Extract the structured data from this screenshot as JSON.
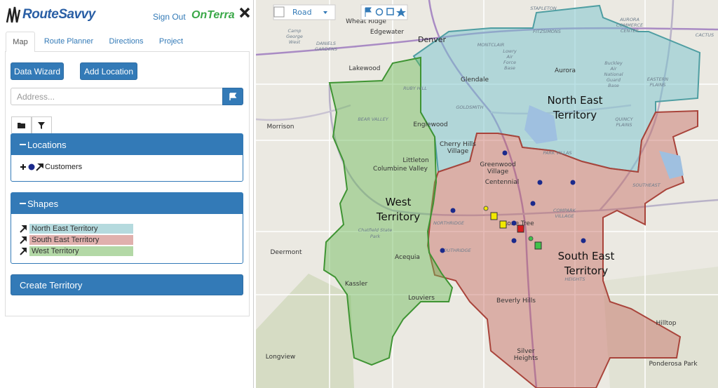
{
  "header": {
    "logo": "RouteSavvy",
    "sign_out": "Sign Out",
    "brand": "OnTerra"
  },
  "tabs": [
    "Map",
    "Route Planner",
    "Directions",
    "Project"
  ],
  "buttons": {
    "data_wizard": "Data Wizard",
    "add_location": "Add Location",
    "create_territory": "Create Territory"
  },
  "address_placeholder": "Address...",
  "locations_panel": {
    "title": "Locations",
    "items": [
      "Customers"
    ]
  },
  "shapes_panel": {
    "title": "Shapes",
    "items": [
      "North East Territory",
      "South East Territory",
      "West Territory"
    ]
  },
  "map": {
    "layer": "Road",
    "territories": [
      {
        "lines": [
          "North East",
          "Territory"
        ]
      },
      {
        "lines": [
          "South East",
          "Territory"
        ]
      },
      {
        "lines": [
          "West",
          "Territory"
        ]
      }
    ],
    "places": [
      {
        "lines": [
          "Wheat Ridge"
        ]
      },
      {
        "lines": [
          "Edgewater"
        ]
      },
      {
        "lines": [
          "Denver"
        ]
      },
      {
        "lines": [
          "Lakewood"
        ]
      },
      {
        "lines": [
          "Glendale"
        ]
      },
      {
        "lines": [
          "Aurora"
        ]
      },
      {
        "lines": [
          "Englewood"
        ]
      },
      {
        "lines": [
          "Morrison"
        ]
      },
      {
        "lines": [
          "Cherry Hills",
          "Village"
        ]
      },
      {
        "lines": [
          "Greenwood",
          "Village"
        ]
      },
      {
        "lines": [
          "Centennial"
        ]
      },
      {
        "lines": [
          "Littleton"
        ]
      },
      {
        "lines": [
          "Columbine Valley"
        ]
      },
      {
        "lines": [
          "Deermont"
        ]
      },
      {
        "lines": [
          "Acequia"
        ]
      },
      {
        "lines": [
          "Kassler"
        ]
      },
      {
        "lines": [
          "Louviers"
        ]
      },
      {
        "lines": [
          "Beverly Hills"
        ]
      },
      {
        "lines": [
          "Silver",
          "Heights"
        ]
      },
      {
        "lines": [
          "Longview"
        ]
      },
      {
        "lines": [
          "Hilltop"
        ]
      },
      {
        "lines": [
          "Ponderosa Park"
        ]
      },
      {
        "lines": [
          "Lone Tree"
        ]
      },
      {
        "lines": [
          "STAPLETON"
        ]
      },
      {
        "lines": [
          "MONTCLAIR"
        ]
      },
      {
        "lines": [
          "Lowry",
          "Air",
          "Force",
          "Base"
        ]
      },
      {
        "lines": [
          "Buckley",
          "Air",
          "National",
          "Guard",
          "Base"
        ]
      },
      {
        "lines": [
          "FITZSIMONS"
        ]
      },
      {
        "lines": [
          "EASTERN",
          "PLAINS"
        ]
      },
      {
        "lines": [
          "QUINCY",
          "PLAINS"
        ]
      },
      {
        "lines": [
          "PARK VILLAS"
        ]
      },
      {
        "lines": [
          "SOUTHRIDGE"
        ]
      },
      {
        "lines": [
          "NORTHRIDGE"
        ]
      },
      {
        "lines": [
          "Chatfield State",
          "Park"
        ]
      },
      {
        "lines": [
          "BEAR VALLEY"
        ]
      },
      {
        "lines": [
          "RUBY HILL"
        ]
      },
      {
        "lines": [
          "GOLDSMITH"
        ]
      },
      {
        "lines": [
          "DANIELS",
          "GARDENS"
        ]
      },
      {
        "lines": [
          "Camp",
          "George",
          "West"
        ]
      },
      {
        "lines": [
          "HEIGHTS"
        ]
      },
      {
        "lines": [
          "SOUTHEAST"
        ]
      },
      {
        "lines": [
          "COMPARK",
          "VILLAGE"
        ]
      },
      {
        "lines": [
          "CACTUS"
        ]
      },
      {
        "lines": [
          "AURORA",
          "COMMERCE",
          "CENTER"
        ]
      }
    ]
  }
}
